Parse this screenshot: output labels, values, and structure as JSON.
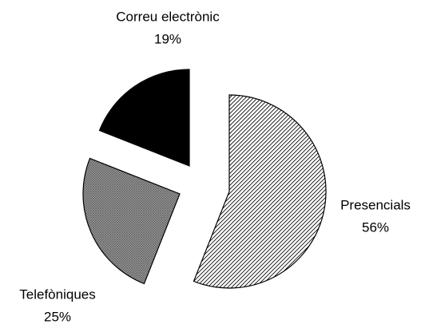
{
  "chart_data": {
    "type": "pie",
    "categories": [
      "Presencials",
      "Telefòniques",
      "Correu electrònic"
    ],
    "values": [
      56,
      25,
      19
    ],
    "value_labels": [
      "56%",
      "25%",
      "19%"
    ],
    "colors": [
      "#ffffff",
      "#a0a0a0",
      "#000000"
    ]
  }
}
